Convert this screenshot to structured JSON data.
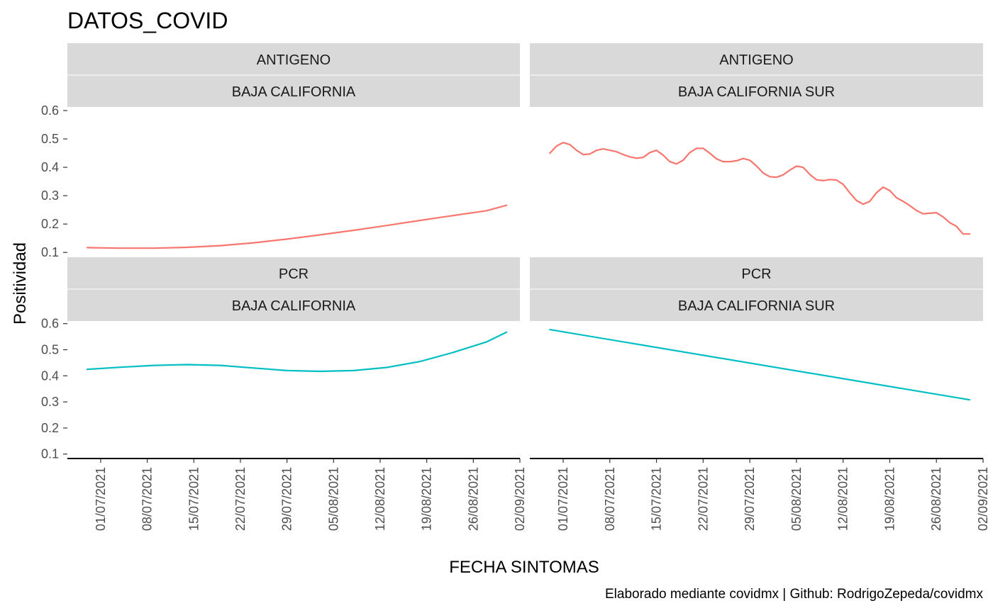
{
  "chart_data": {
    "type": "line",
    "title": "DATOS_COVID",
    "xlabel": "FECHA SINTOMAS",
    "ylabel": "Positividad",
    "caption": "Elaborado mediante covidmx | Github: RodrigoZepeda/covidmx",
    "ylim": [
      0.083,
      0.61
    ],
    "xlim": [
      "2021-06-26",
      "2021-09-02"
    ],
    "y_ticks": [
      0.1,
      0.2,
      0.3,
      0.4,
      0.5,
      0.6
    ],
    "y_tick_labels": [
      "0.1",
      "0.2",
      "0.3",
      "0.4",
      "0.5",
      "0.6"
    ],
    "x_ticks": [
      "2021-07-01",
      "2021-07-08",
      "2021-07-15",
      "2021-07-22",
      "2021-07-29",
      "2021-08-05",
      "2021-08-12",
      "2021-08-19",
      "2021-08-26",
      "2021-09-02"
    ],
    "x_tick_labels": [
      "01/07/2021",
      "08/07/2021",
      "15/07/2021",
      "22/07/2021",
      "29/07/2021",
      "05/08/2021",
      "12/08/2021",
      "19/08/2021",
      "26/08/2021",
      "02/09/2021"
    ],
    "colors": {
      "ANTIGENO": "#F8766D",
      "PCR": "#00BFC4"
    },
    "strip_fill": "#D9D9D9",
    "grid": false,
    "panels": [
      {
        "test": "ANTIGENO",
        "state": "BAJA CALIFORNIA",
        "x": [
          "2021-06-29",
          "2021-07-04",
          "2021-07-09",
          "2021-07-14",
          "2021-07-19",
          "2021-07-24",
          "2021-07-29",
          "2021-08-03",
          "2021-08-08",
          "2021-08-13",
          "2021-08-18",
          "2021-08-23",
          "2021-08-28",
          "2021-08-31"
        ],
        "y": [
          0.117,
          0.115,
          0.115,
          0.118,
          0.124,
          0.134,
          0.147,
          0.162,
          0.178,
          0.195,
          0.213,
          0.23,
          0.247,
          0.266
        ]
      },
      {
        "test": "ANTIGENO",
        "state": "BAJA CALIFORNIA SUR",
        "x": [
          "2021-06-29",
          "2021-06-30",
          "2021-07-01",
          "2021-07-02",
          "2021-07-03",
          "2021-07-04",
          "2021-07-05",
          "2021-07-06",
          "2021-07-07",
          "2021-07-08",
          "2021-07-09",
          "2021-07-10",
          "2021-07-11",
          "2021-07-12",
          "2021-07-13",
          "2021-07-14",
          "2021-07-15",
          "2021-07-16",
          "2021-07-17",
          "2021-07-18",
          "2021-07-19",
          "2021-07-20",
          "2021-07-21",
          "2021-07-22",
          "2021-07-23",
          "2021-07-24",
          "2021-07-25",
          "2021-07-26",
          "2021-07-27",
          "2021-07-28",
          "2021-07-29",
          "2021-07-30",
          "2021-07-31",
          "2021-08-01",
          "2021-08-02",
          "2021-08-03",
          "2021-08-04",
          "2021-08-05",
          "2021-08-06",
          "2021-08-07",
          "2021-08-08",
          "2021-08-09",
          "2021-08-10",
          "2021-08-11",
          "2021-08-12",
          "2021-08-13",
          "2021-08-14",
          "2021-08-15",
          "2021-08-16",
          "2021-08-17",
          "2021-08-18",
          "2021-08-19",
          "2021-08-20",
          "2021-08-21",
          "2021-08-22",
          "2021-08-23",
          "2021-08-24",
          "2021-08-25",
          "2021-08-26",
          "2021-08-27",
          "2021-08-28",
          "2021-08-29",
          "2021-08-30",
          "2021-08-31"
        ],
        "y": [
          0.45,
          0.475,
          0.487,
          0.48,
          0.46,
          0.445,
          0.447,
          0.46,
          0.465,
          0.46,
          0.455,
          0.445,
          0.437,
          0.432,
          0.435,
          0.452,
          0.46,
          0.443,
          0.42,
          0.412,
          0.425,
          0.452,
          0.467,
          0.467,
          0.45,
          0.43,
          0.42,
          0.42,
          0.423,
          0.431,
          0.425,
          0.405,
          0.38,
          0.367,
          0.365,
          0.373,
          0.39,
          0.404,
          0.4,
          0.375,
          0.356,
          0.353,
          0.357,
          0.355,
          0.34,
          0.31,
          0.283,
          0.27,
          0.28,
          0.31,
          0.33,
          0.318,
          0.293,
          0.28,
          0.265,
          0.248,
          0.236,
          0.238,
          0.24,
          0.225,
          0.205,
          0.192,
          0.165,
          0.165
        ]
      },
      {
        "test": "PCR",
        "state": "BAJA CALIFORNIA",
        "x": [
          "2021-06-29",
          "2021-07-04",
          "2021-07-09",
          "2021-07-14",
          "2021-07-19",
          "2021-07-24",
          "2021-07-29",
          "2021-08-03",
          "2021-08-08",
          "2021-08-13",
          "2021-08-18",
          "2021-08-23",
          "2021-08-28",
          "2021-08-31"
        ],
        "y": [
          0.425,
          0.433,
          0.44,
          0.443,
          0.44,
          0.43,
          0.42,
          0.417,
          0.42,
          0.432,
          0.455,
          0.49,
          0.53,
          0.567
        ]
      },
      {
        "test": "PCR",
        "state": "BAJA CALIFORNIA SUR",
        "x": [
          "2021-06-29",
          "2021-08-31"
        ],
        "y": [
          0.577,
          0.308
        ]
      }
    ]
  }
}
